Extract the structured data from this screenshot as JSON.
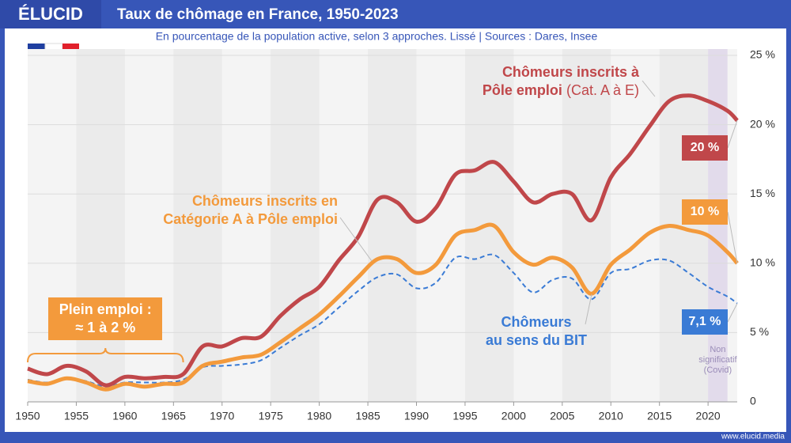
{
  "header": {
    "logo": "ÉLUCID",
    "footer": "www.elucid.media"
  },
  "chart_data": {
    "type": "line",
    "title": "Taux de chômage en France, 1950-2023",
    "subtitle": "En pourcentage de la population active, selon 3 approches. Lissé  |  Sources : Dares, Insee",
    "x": [
      1950,
      1952,
      1954,
      1956,
      1958,
      1960,
      1962,
      1964,
      1966,
      1968,
      1970,
      1972,
      1974,
      1976,
      1978,
      1980,
      1982,
      1984,
      1986,
      1988,
      1990,
      1992,
      1994,
      1996,
      1998,
      2000,
      2002,
      2004,
      2006,
      2008,
      2010,
      2012,
      2014,
      2016,
      2018,
      2020,
      2022,
      2023
    ],
    "series": [
      {
        "name": "Chômeurs inscrits à\nPôle emploi",
        "note": "(Cat. A à E)",
        "color": "#c0474a",
        "dashed": false,
        "values": [
          2.4,
          2.0,
          2.6,
          2.2,
          1.2,
          1.8,
          1.7,
          1.8,
          2.0,
          4.0,
          4.0,
          4.6,
          4.7,
          6.2,
          7.4,
          8.3,
          10.2,
          11.9,
          14.6,
          14.4,
          13.0,
          14.0,
          16.4,
          16.7,
          17.3,
          15.9,
          14.4,
          15.0,
          15.0,
          13.1,
          16.2,
          17.9,
          19.9,
          21.7,
          22.1,
          21.7,
          21.0,
          20.3
        ],
        "value_labels": [
          null,
          null,
          null,
          null,
          null,
          null,
          null,
          null,
          null,
          null,
          null,
          null,
          null,
          null,
          null,
          null,
          null,
          null,
          null,
          null,
          null,
          null,
          null,
          null,
          null,
          null,
          null,
          null,
          null,
          null,
          null,
          null,
          null,
          null,
          null,
          null,
          null,
          "20 %"
        ]
      },
      {
        "name": "Chômeurs inscrits en\nCatégorie A à Pôle emploi",
        "color": "#f39a3c",
        "dashed": false,
        "values": [
          1.5,
          1.3,
          1.7,
          1.4,
          0.9,
          1.3,
          1.1,
          1.3,
          1.4,
          2.6,
          2.9,
          3.2,
          3.4,
          4.3,
          5.3,
          6.3,
          7.6,
          9.0,
          10.3,
          10.3,
          9.3,
          9.9,
          12.0,
          12.4,
          12.7,
          10.8,
          9.9,
          10.4,
          9.7,
          7.8,
          9.9,
          11.0,
          12.2,
          12.7,
          12.4,
          12.0,
          10.8,
          10.0
        ],
        "value_labels": [
          null,
          null,
          null,
          null,
          null,
          null,
          null,
          null,
          null,
          null,
          null,
          null,
          null,
          null,
          null,
          null,
          null,
          null,
          null,
          null,
          null,
          null,
          null,
          null,
          null,
          null,
          null,
          null,
          null,
          null,
          null,
          null,
          null,
          null,
          null,
          null,
          null,
          "10 %"
        ]
      },
      {
        "name": "Chômeurs\nau sens du BIT",
        "color": "#3a7bd5",
        "dashed": true,
        "values": [
          1.6,
          1.4,
          1.7,
          1.5,
          1.1,
          1.4,
          1.4,
          1.4,
          1.6,
          2.5,
          2.6,
          2.7,
          3.0,
          3.9,
          4.8,
          5.6,
          6.8,
          8.0,
          9.0,
          9.2,
          8.2,
          8.6,
          10.4,
          10.3,
          10.6,
          9.3,
          7.9,
          8.8,
          8.9,
          7.4,
          9.3,
          9.6,
          10.2,
          10.2,
          9.3,
          8.3,
          7.6,
          7.1
        ],
        "value_labels": [
          null,
          null,
          null,
          null,
          null,
          null,
          null,
          null,
          null,
          null,
          null,
          null,
          null,
          null,
          null,
          null,
          null,
          null,
          null,
          null,
          null,
          null,
          null,
          null,
          null,
          null,
          null,
          null,
          null,
          null,
          null,
          null,
          null,
          null,
          null,
          null,
          null,
          "7,1 %"
        ]
      }
    ],
    "xlim": [
      1950,
      2023
    ],
    "xticks": [
      1950,
      1955,
      1960,
      1965,
      1970,
      1975,
      1980,
      1985,
      1990,
      1995,
      2000,
      2005,
      2010,
      2015,
      2020
    ],
    "ylim": [
      0,
      25
    ],
    "yticks": [
      0,
      {
        "value": 5,
        "label": "5 %"
      },
      {
        "value": 10,
        "label": "10 %"
      },
      {
        "value": 15,
        "label": "15 %"
      },
      {
        "value": 20,
        "label": "20 %"
      },
      {
        "value": 25,
        "label": "25 %"
      }
    ],
    "grid": true,
    "annotations": [
      {
        "text": "Plein emploi :\n≈ 1 à 2 %",
        "x": [
          1950,
          1966
        ],
        "color": "#f39a3c"
      },
      {
        "text": "Non\nsignificatif\n(Covid)",
        "x": [
          2020,
          2022
        ],
        "color": "#e2dbeb"
      }
    ]
  }
}
